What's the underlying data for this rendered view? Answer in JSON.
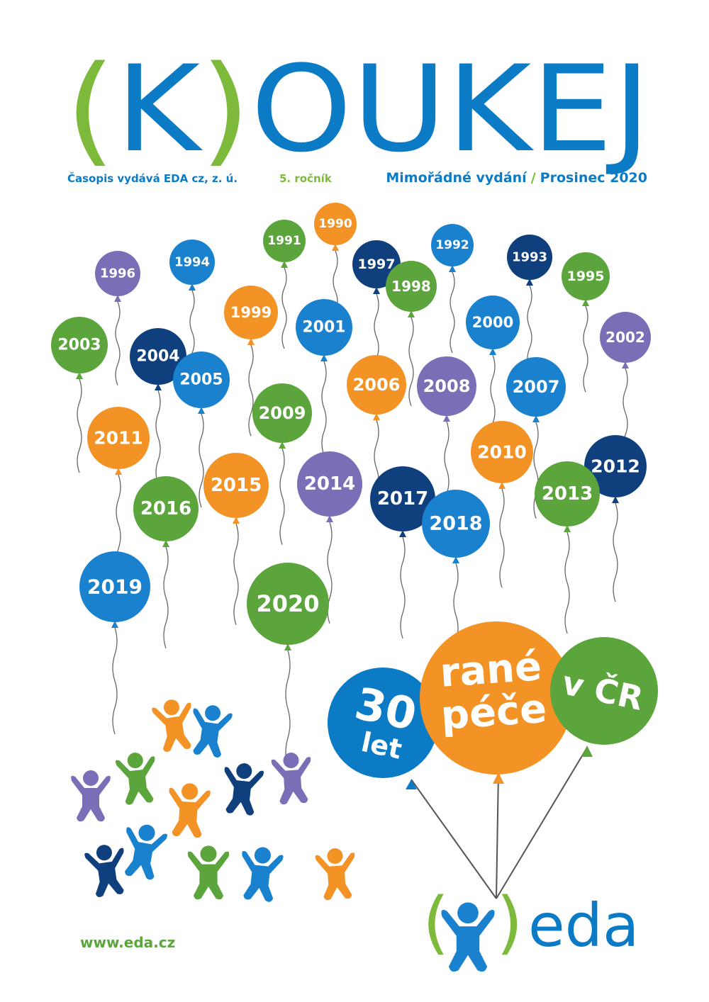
{
  "header": {
    "title": [
      "(",
      "K",
      ")",
      "OUKEJ"
    ],
    "publisher": "Časopis vydává EDA cz, z. ú.",
    "volume": "5. ročník",
    "edition": "Mimořádné vydání",
    "separator": "/",
    "date": "Prosinec 2020"
  },
  "balloons": [
    "1996",
    "1994",
    "1991",
    "1990",
    "1997",
    "1992",
    "1998",
    "1993",
    "1995",
    "1999",
    "2001",
    "2000",
    "2002",
    "2003",
    "2004",
    "2005",
    "2006",
    "2008",
    "2007",
    "2009",
    "2011",
    "2010",
    "2012",
    "2015",
    "2014",
    "2013",
    "2017",
    "2016",
    "2018",
    "2019",
    "2020"
  ],
  "slogan": {
    "first": [
      "30",
      "let"
    ],
    "second": [
      "rané",
      "péče"
    ],
    "third": "v ČR"
  },
  "logo": {
    "open": "(",
    "close": ")",
    "name": "eda"
  },
  "footer": {
    "url": "www.eda.cz"
  }
}
